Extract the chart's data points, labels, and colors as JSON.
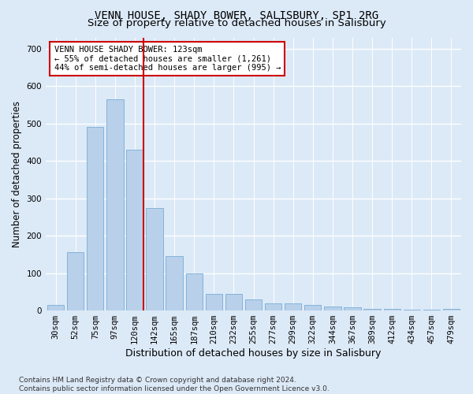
{
  "title_line1": "VENN HOUSE, SHADY BOWER, SALISBURY, SP1 2RG",
  "title_line2": "Size of property relative to detached houses in Salisbury",
  "xlabel": "Distribution of detached houses by size in Salisbury",
  "ylabel": "Number of detached properties",
  "bar_labels": [
    "30sqm",
    "52sqm",
    "75sqm",
    "97sqm",
    "120sqm",
    "142sqm",
    "165sqm",
    "187sqm",
    "210sqm",
    "232sqm",
    "255sqm",
    "277sqm",
    "299sqm",
    "322sqm",
    "344sqm",
    "367sqm",
    "389sqm",
    "412sqm",
    "434sqm",
    "457sqm",
    "479sqm"
  ],
  "bar_values": [
    15,
    155,
    490,
    565,
    430,
    275,
    145,
    100,
    45,
    45,
    30,
    20,
    20,
    15,
    10,
    8,
    5,
    5,
    2,
    2,
    5
  ],
  "bar_color": "#b8d0ea",
  "bar_edge_color": "#7aadd4",
  "vline_color": "#cc0000",
  "vline_x_index": 4,
  "annotation_text": "VENN HOUSE SHADY BOWER: 123sqm\n← 55% of detached houses are smaller (1,261)\n44% of semi-detached houses are larger (995) →",
  "annotation_box_color": "white",
  "annotation_box_edge": "#cc0000",
  "ylim": [
    0,
    730
  ],
  "yticks": [
    0,
    100,
    200,
    300,
    400,
    500,
    600,
    700
  ],
  "bg_color": "#dce9f7",
  "plot_bg_color": "#dce9f7",
  "grid_color": "white",
  "footnote": "Contains HM Land Registry data © Crown copyright and database right 2024.\nContains public sector information licensed under the Open Government Licence v3.0.",
  "title_fontsize": 10,
  "subtitle_fontsize": 9.5,
  "xlabel_fontsize": 9,
  "ylabel_fontsize": 8.5,
  "tick_fontsize": 7.5,
  "annot_fontsize": 7.5,
  "footnote_fontsize": 6.5
}
